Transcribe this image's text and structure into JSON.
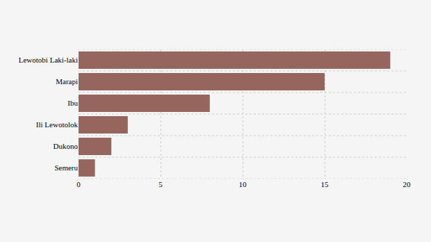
{
  "chart_data": {
    "type": "bar",
    "orientation": "horizontal",
    "categories": [
      "Lewotobi Laki-laki",
      "Marapi",
      "Ibu",
      "Ili Lewotolok",
      "Dukono",
      "Semeru"
    ],
    "values": [
      19,
      15,
      8,
      3,
      2,
      1
    ],
    "color": "#96665e",
    "xlim": [
      0,
      20
    ],
    "xticks": [
      0,
      5,
      10,
      15,
      20
    ],
    "grid": true
  }
}
